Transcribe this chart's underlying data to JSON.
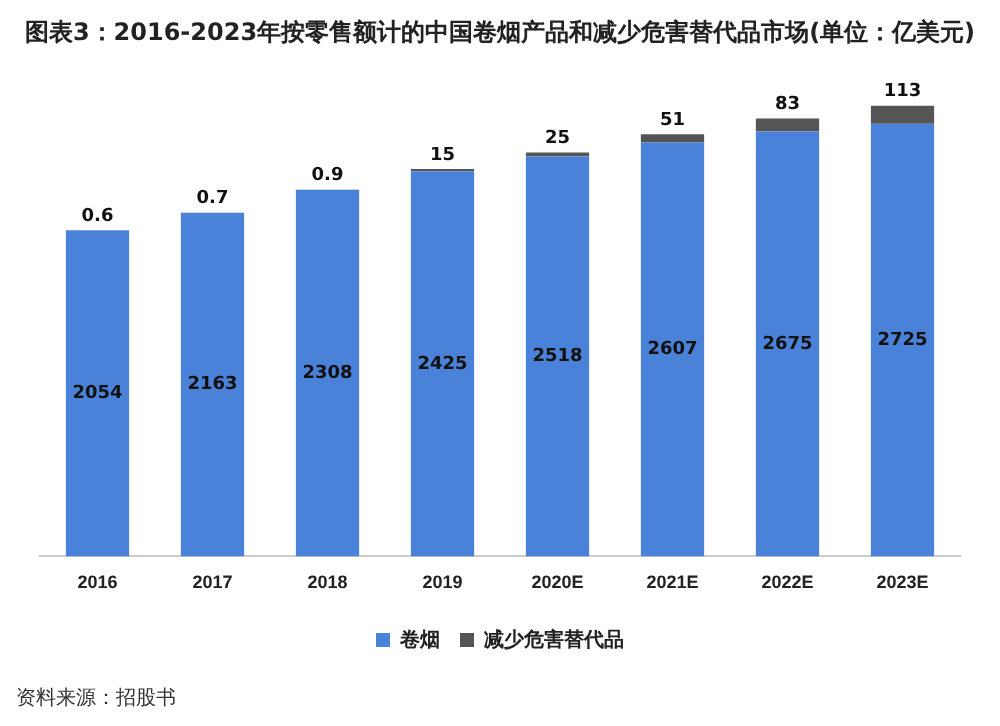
{
  "chart_data": {
    "type": "bar",
    "title": "图表3：2016-2023年按零售额计的中国卷烟产品和减少危害替代品市场(单位：亿美元)",
    "categories": [
      "2016",
      "2017",
      "2018",
      "2019",
      "2020E",
      "2021E",
      "2022E",
      "2023E"
    ],
    "stacked": true,
    "data_labels": true,
    "legend": "bottom",
    "grid": false,
    "series": [
      {
        "name": "卷烟",
        "color": "#4a82d9",
        "values": [
          2054,
          2163,
          2308,
          2425,
          2518,
          2607,
          2675,
          2725
        ]
      },
      {
        "name": "减少危害替代品",
        "color": "#555555",
        "values": [
          0.6,
          0.7,
          0.9,
          15,
          25,
          51,
          83,
          113
        ]
      }
    ],
    "annotations": [
      "资料来源：招股书"
    ]
  }
}
